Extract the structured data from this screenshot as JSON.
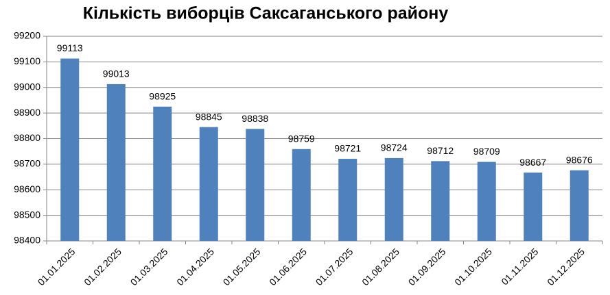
{
  "chart_data": {
    "type": "bar",
    "title": "Кількість виборців Саксаганського району",
    "categories": [
      "01.01.2025",
      "01.02.2025",
      "01.03.2025",
      "01.04.2025",
      "01.05.2025",
      "01.06.2025",
      "01.07.2025",
      "01.08.2025",
      "01.09.2025",
      "01.10.2025",
      "01.11.2025",
      "01.12.2025"
    ],
    "values": [
      99113,
      99013,
      98925,
      98845,
      98838,
      98759,
      98721,
      98724,
      98712,
      98709,
      98667,
      98676
    ],
    "color": "#4f81bd",
    "ylim": [
      98400,
      99200
    ],
    "yticks": [
      98400,
      98500,
      98600,
      98700,
      98800,
      98900,
      99000,
      99100,
      99200
    ],
    "grid": true
  }
}
